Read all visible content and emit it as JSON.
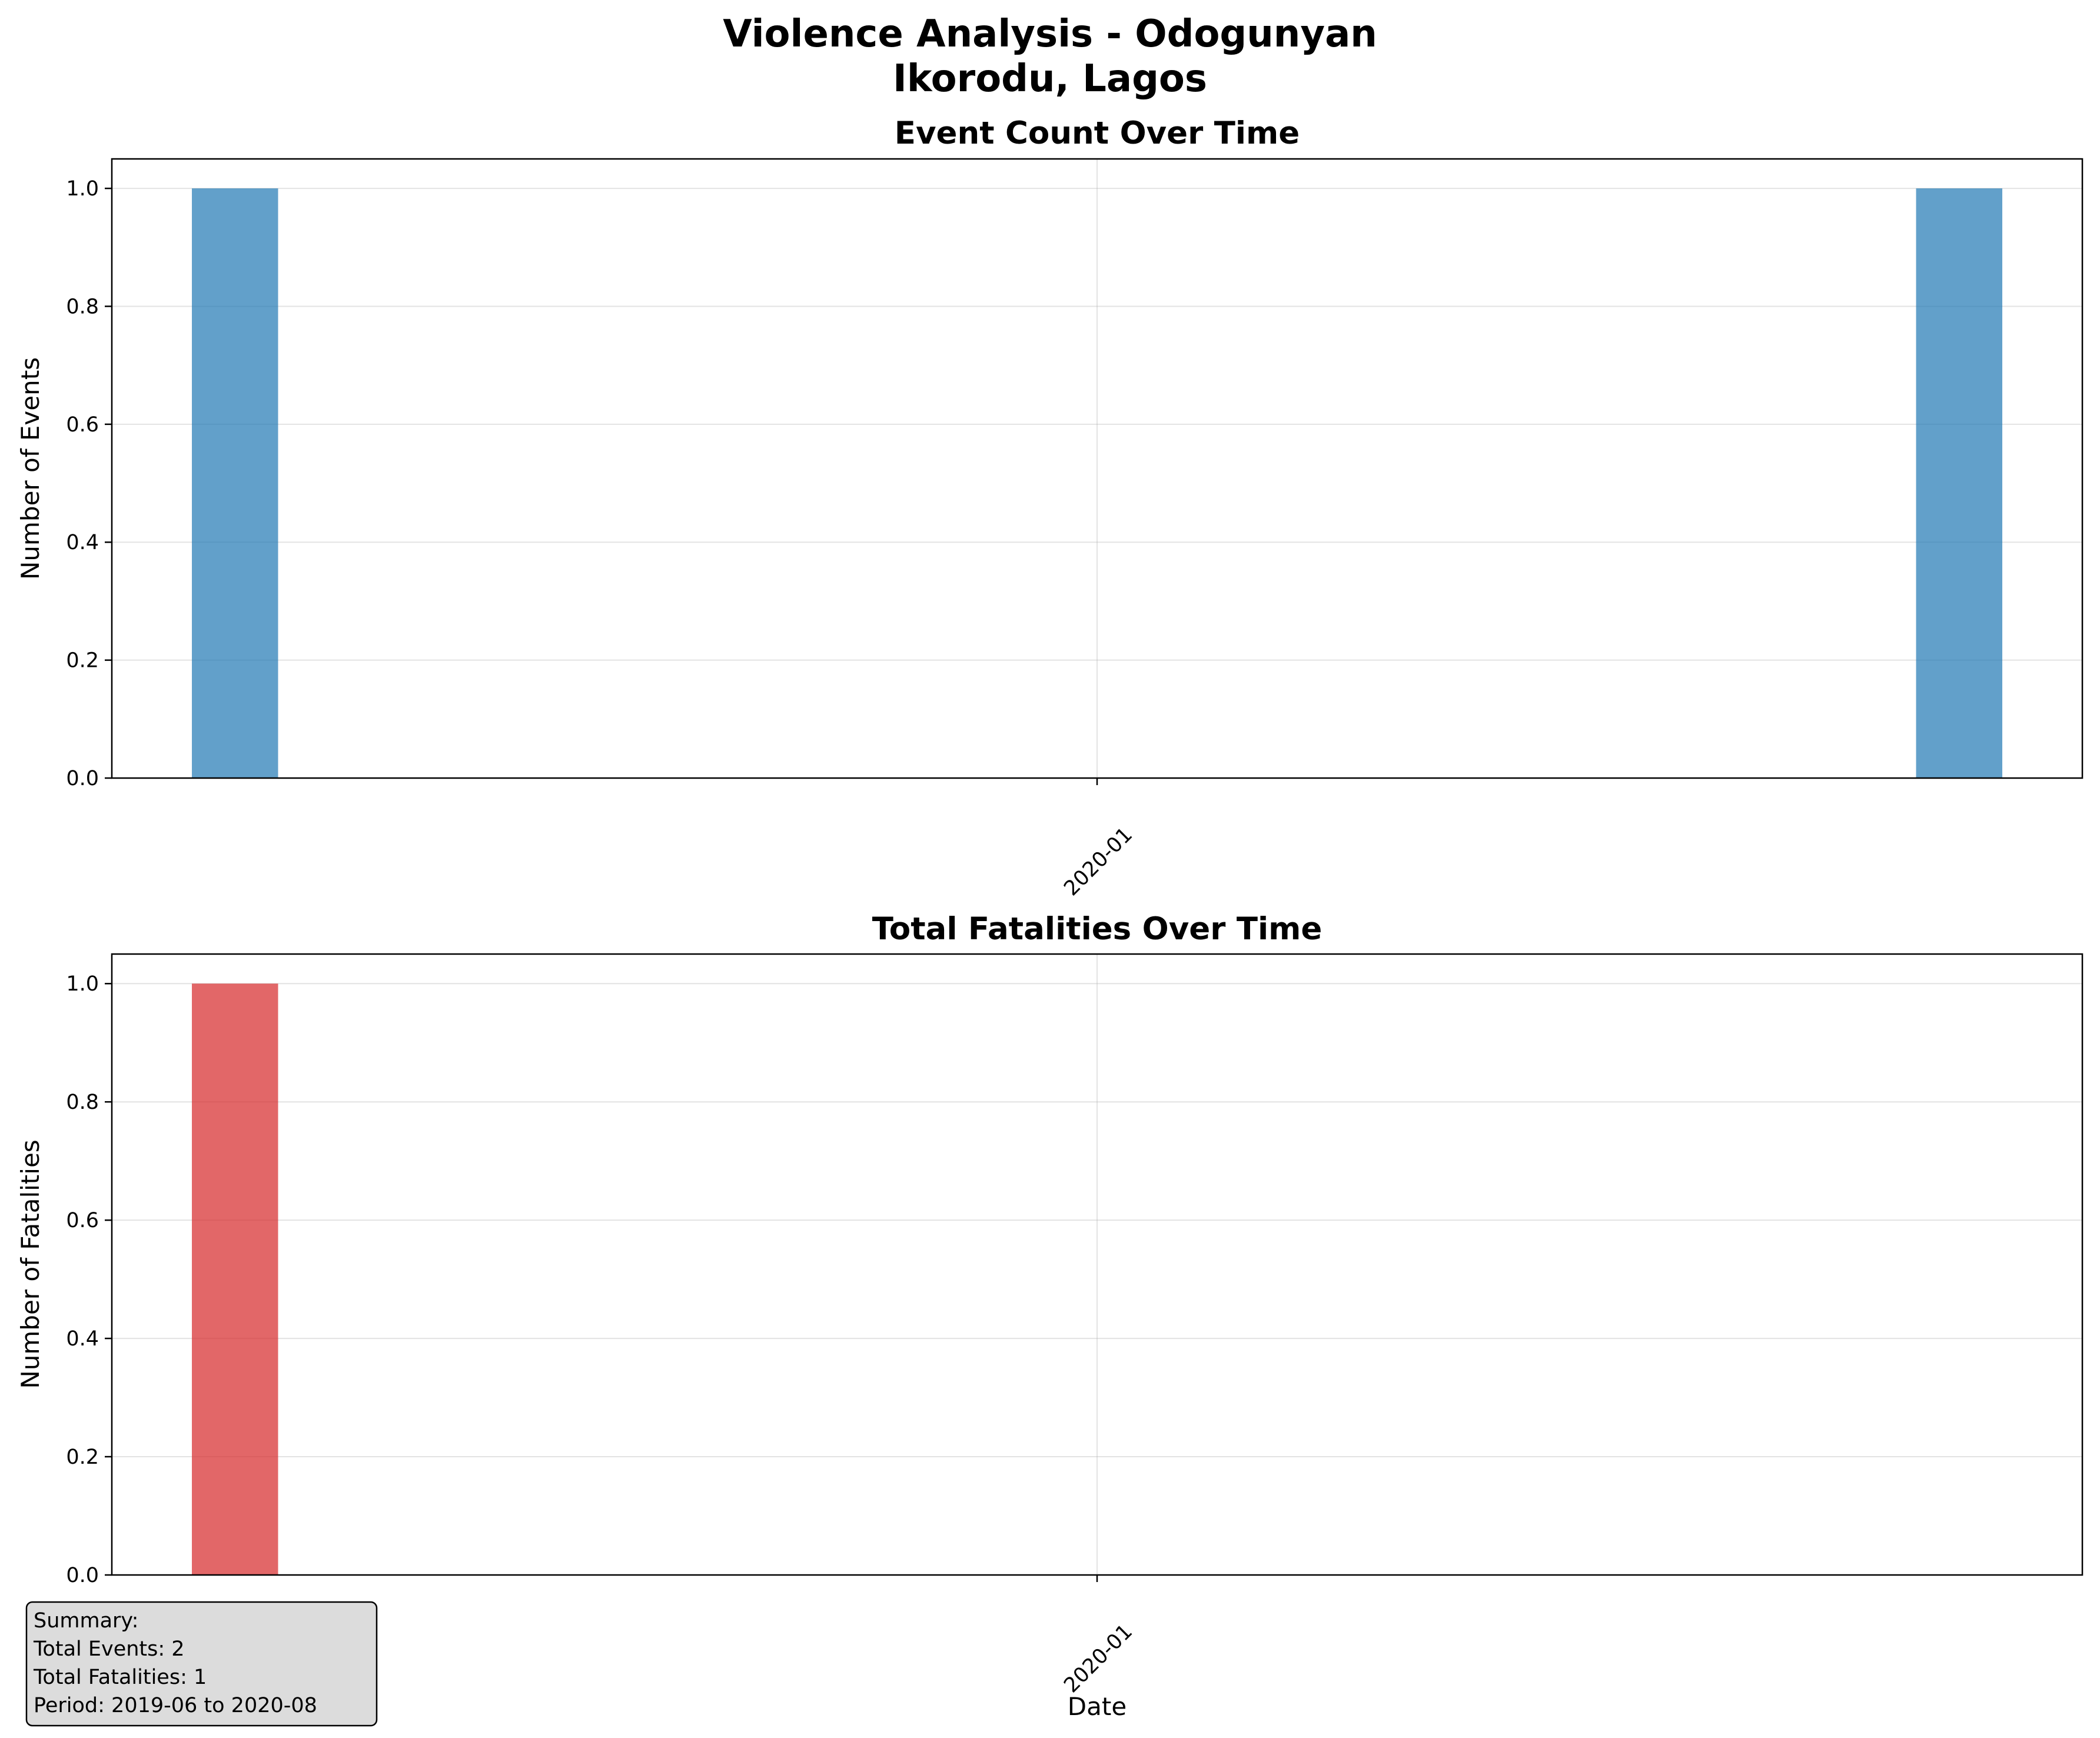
{
  "figure": {
    "title_line1": "Violence Analysis - Odogunyan",
    "title_line2": "Ikorodu, Lagos"
  },
  "chart_data": [
    {
      "type": "bar",
      "title": "Event Count Over Time",
      "xlabel": "",
      "ylabel": "Number of Events",
      "x": [
        "2019-06",
        "2020-08"
      ],
      "values": [
        1,
        1
      ],
      "xticks": [
        "2020-01"
      ],
      "xlim": [
        "2019-05",
        "2020-09"
      ],
      "ylim": [
        0,
        1.05
      ],
      "yticks": [
        "0.0",
        "0.2",
        "0.4",
        "0.6",
        "0.8",
        "1.0"
      ],
      "grid": true,
      "color": "#1f77b4"
    },
    {
      "type": "bar",
      "title": "Total Fatalities Over Time",
      "xlabel": "Date",
      "ylabel": "Number of Fatalities",
      "x": [
        "2019-06",
        "2020-08"
      ],
      "values": [
        1,
        0
      ],
      "xticks": [
        "2020-01"
      ],
      "xlim": [
        "2019-05",
        "2020-09"
      ],
      "ylim": [
        0,
        1.05
      ],
      "yticks": [
        "0.0",
        "0.2",
        "0.4",
        "0.6",
        "0.8",
        "1.0"
      ],
      "grid": true,
      "color": "#d62728"
    }
  ],
  "summary": {
    "heading": "Summary:",
    "total_events": "Total Events: 2",
    "total_fatalities": "Total Fatalities: 1",
    "period": "Period: 2019-06 to 2020-08"
  }
}
